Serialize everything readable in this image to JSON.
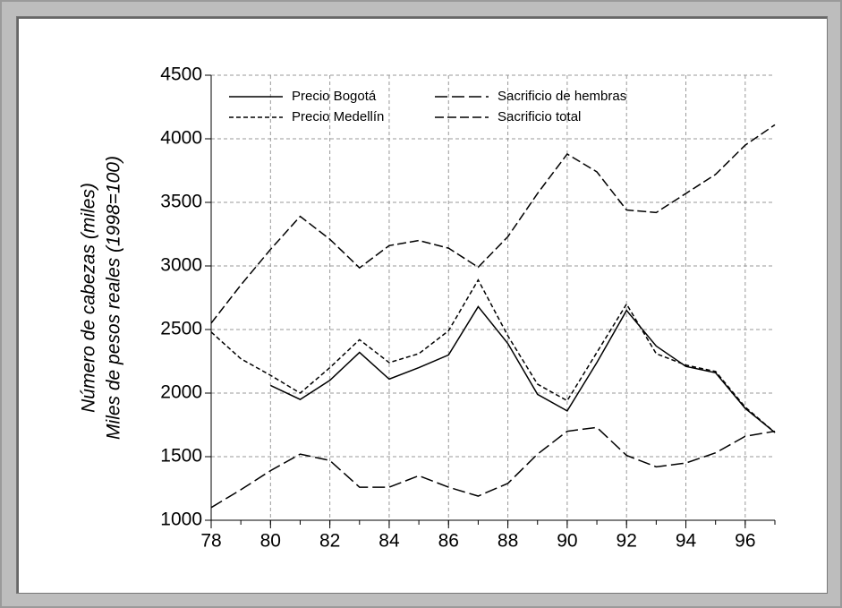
{
  "chart_data": {
    "type": "line",
    "y_label_lines": [
      "Número de cabezas (miles)",
      "Miles de pesos reales (1998=100)"
    ],
    "x": [
      78,
      79,
      80,
      81,
      82,
      83,
      84,
      85,
      86,
      87,
      88,
      89,
      90,
      91,
      92,
      93,
      94,
      95,
      96,
      97
    ],
    "series": [
      {
        "name": "Precio Bogotá",
        "color": "#000000",
        "dash": "none",
        "values": [
          null,
          null,
          2060,
          1950,
          2100,
          2320,
          2110,
          2200,
          2300,
          2680,
          2390,
          1990,
          1860,
          2240,
          2650,
          2370,
          2210,
          2160,
          1880,
          1690
        ]
      },
      {
        "name": "Sacrificio de hembras",
        "color": "#000000",
        "dash": "14,5",
        "values": [
          1100,
          1240,
          1390,
          1520,
          1470,
          1260,
          1260,
          1350,
          1260,
          1190,
          1290,
          1520,
          1700,
          1730,
          1510,
          1420,
          1450,
          1530,
          1660,
          1700
        ]
      },
      {
        "name": "Precio Medellín",
        "color": "#000000",
        "dash": "5,3",
        "values": [
          2480,
          2270,
          2140,
          2000,
          2200,
          2420,
          2240,
          2310,
          2490,
          2890,
          2450,
          2070,
          1940,
          2320,
          2700,
          2310,
          2220,
          2170,
          1890,
          1690
        ]
      },
      {
        "name": "Sacrificio total",
        "color": "#000000",
        "dash": "10,4",
        "values": [
          2550,
          2850,
          3130,
          3390,
          3210,
          2985,
          3160,
          3200,
          3140,
          2990,
          3230,
          3570,
          3880,
          3740,
          3440,
          3420,
          3570,
          3720,
          3950,
          4110
        ]
      }
    ],
    "xlim": [
      78,
      97
    ],
    "xticks": [
      78,
      80,
      82,
      84,
      86,
      88,
      90,
      92,
      94,
      96
    ],
    "ylim": [
      1000,
      4500
    ],
    "yticks": [
      1000,
      1500,
      2000,
      2500,
      3000,
      3500,
      4000,
      4500
    ],
    "grid": true,
    "legend": "top-left"
  }
}
